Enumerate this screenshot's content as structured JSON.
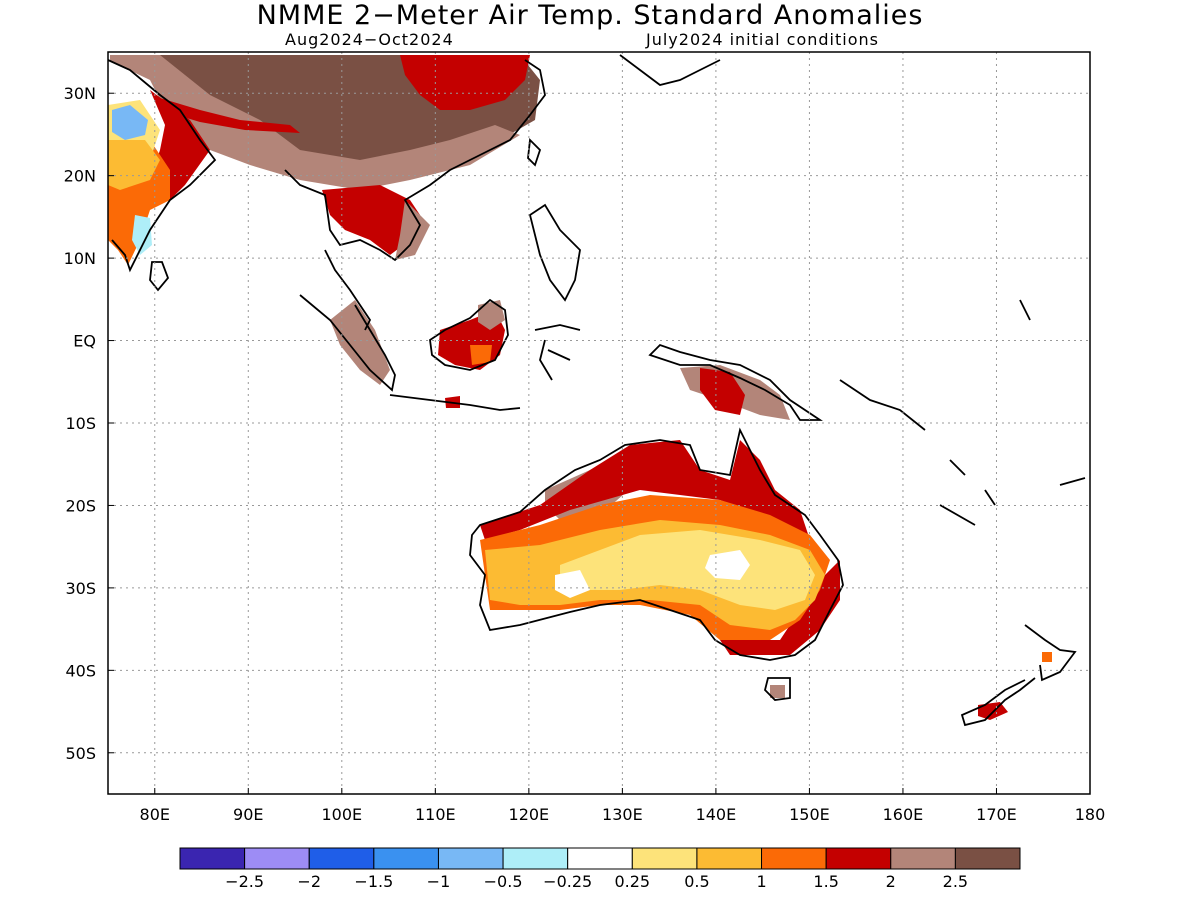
{
  "title": "NMME 2−Meter Air Temp. Standard Anomalies",
  "subtitle_left": "Aug2024−Oct2024",
  "subtitle_right": "July2024 initial conditions",
  "map": {
    "lon_range": [
      75,
      180
    ],
    "lat_range": [
      -55,
      35
    ],
    "lon_ticks": [
      {
        "value": 80,
        "label": "80E"
      },
      {
        "value": 90,
        "label": "90E"
      },
      {
        "value": 100,
        "label": "100E"
      },
      {
        "value": 110,
        "label": "110E"
      },
      {
        "value": 120,
        "label": "120E"
      },
      {
        "value": 130,
        "label": "130E"
      },
      {
        "value": 140,
        "label": "140E"
      },
      {
        "value": 150,
        "label": "150E"
      },
      {
        "value": 160,
        "label": "160E"
      },
      {
        "value": 170,
        "label": "170E"
      },
      {
        "value": 180,
        "label": "180"
      }
    ],
    "lat_ticks": [
      {
        "value": 30,
        "label": "30N"
      },
      {
        "value": 20,
        "label": "20N"
      },
      {
        "value": 10,
        "label": "10N"
      },
      {
        "value": 0,
        "label": "EQ"
      },
      {
        "value": -10,
        "label": "10S"
      },
      {
        "value": -20,
        "label": "20S"
      },
      {
        "value": -30,
        "label": "30S"
      },
      {
        "value": -40,
        "label": "40S"
      },
      {
        "value": -50,
        "label": "50S"
      }
    ],
    "grid": "dotted"
  },
  "colorbar": {
    "colors": [
      "#3a25b0",
      "#9d8cf5",
      "#1f5ee8",
      "#3a91f0",
      "#78b8f5",
      "#aeeef8",
      "#ffffff",
      "#fde37a",
      "#fcbb33",
      "#fb6a06",
      "#c40000",
      "#b38579",
      "#7a5044"
    ],
    "labels": [
      "−2.5",
      "−2",
      "−1.5",
      "−1",
      "−0.5",
      "−0.25",
      "0.25",
      "0.5",
      "1",
      "1.5",
      "2",
      "2.5"
    ]
  }
}
